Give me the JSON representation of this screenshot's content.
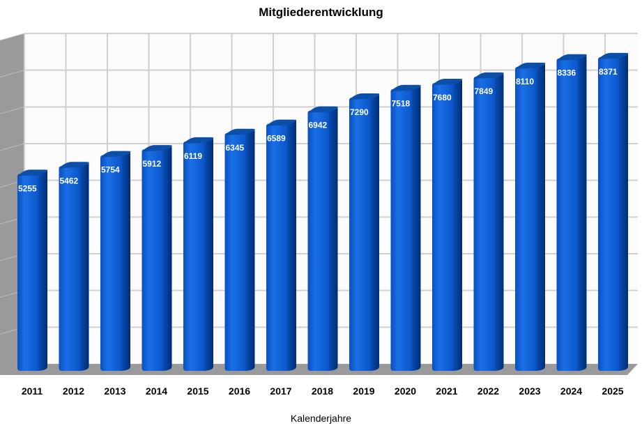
{
  "chart_data": {
    "type": "bar",
    "title": "Mitgliederentwicklung",
    "xlabel": "Kalenderjahre",
    "ylabel": "",
    "categories": [
      "2011",
      "2012",
      "2013",
      "2014",
      "2015",
      "2016",
      "2017",
      "2018",
      "2019",
      "2020",
      "2021",
      "2022",
      "2023",
      "2024",
      "2025"
    ],
    "values": [
      5255,
      5462,
      5754,
      5912,
      6119,
      6345,
      6589,
      6942,
      7290,
      7518,
      7680,
      7849,
      8110,
      8336,
      8371
    ],
    "ylim": [
      0,
      9000
    ],
    "grid": true,
    "legend": "none",
    "style": "3d-cylinder",
    "bar_color": "#0a5fd6",
    "bar_side_color": "#003f91"
  }
}
